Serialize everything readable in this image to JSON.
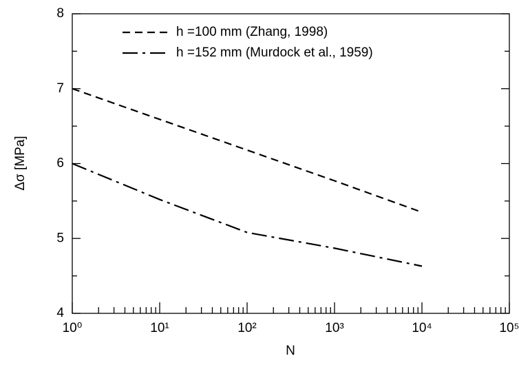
{
  "chart_data": {
    "type": "line",
    "x_label": "N",
    "y_label": "Δσ [MPa]",
    "xscale": "log",
    "x": [
      1,
      10,
      100,
      1000,
      10000
    ],
    "series": [
      {
        "name": "h =100 mm (Zhang, 1998)",
        "color": "#000000",
        "linestyle": "dashed",
        "values": [
          7.0,
          6.59,
          6.18,
          5.77,
          5.35
        ]
      },
      {
        "name": "h =152 mm (Murdock et al., 1959)",
        "color": "#000000",
        "linestyle": "dashdot",
        "values": [
          6.0,
          5.52,
          5.08,
          4.87,
          4.63
        ]
      }
    ],
    "xlim": [
      1,
      100000
    ],
    "xticks": [
      {
        "value": 1,
        "label": "10⁰"
      },
      {
        "value": 10,
        "label": "10¹"
      },
      {
        "value": 100,
        "label": "10²"
      },
      {
        "value": 1000,
        "label": "10³"
      },
      {
        "value": 10000,
        "label": "10⁴"
      },
      {
        "value": 100000,
        "label": "10⁵"
      }
    ],
    "ylim": [
      4,
      8
    ],
    "yticks": [
      4,
      5,
      6,
      7,
      8
    ],
    "grid": false
  }
}
